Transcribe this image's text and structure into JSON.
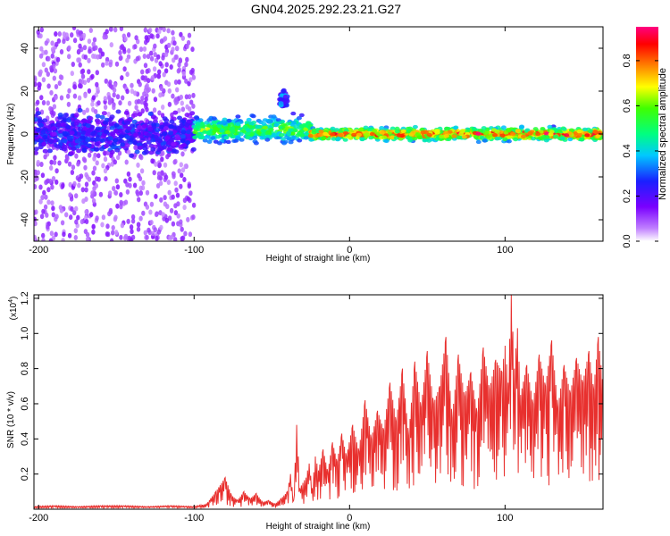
{
  "title": "GN04.2025.292.23.21.G27",
  "colors": {
    "snr_line": "#e8302e",
    "axis": "#000000",
    "background": "#ffffff"
  },
  "chart_data": [
    {
      "type": "heatmap",
      "name": "spectrogram",
      "xlabel": "Height of straight line (km)",
      "ylabel": "Frequency (Hz)",
      "xlim": [
        -203,
        163
      ],
      "ylim": [
        -50,
        50
      ],
      "xticks": [
        -200,
        -100,
        0,
        100
      ],
      "xtick_labels": [
        "-200",
        "-100",
        "0",
        "100"
      ],
      "yticks": [
        -40,
        -20,
        0,
        20,
        40
      ],
      "ytick_labels": [
        "-40",
        "-20",
        "0",
        "20",
        "40"
      ],
      "colorbar": {
        "label": "Normalized spectral amplitude",
        "range": [
          0.0,
          0.95
        ],
        "ticks": [
          0.0,
          0.2,
          0.4,
          0.6,
          0.8
        ],
        "tick_labels": [
          "0.0",
          "0.2",
          "0.4",
          "0.6",
          "0.8"
        ],
        "colormap": "rainbow (white-violet-blue-cyan-green-yellow-red-magenta)"
      },
      "features": [
        {
          "region": [
            -203,
            -100
          ],
          "description": "broad diffuse energy",
          "freq_range": [
            -50,
            50
          ],
          "amplitude": 0.1
        },
        {
          "region": [
            -203,
            -100
          ],
          "description": "dense core",
          "freq_range": [
            -12,
            12
          ],
          "amplitude": 0.2
        },
        {
          "region": [
            -100,
            -25
          ],
          "description": "transition band",
          "freq_center": 2,
          "freq_width": 8,
          "amplitude": 0.5
        },
        {
          "region": [
            -45,
            -40
          ],
          "description": "rising streak",
          "freq_range": [
            10,
            22
          ],
          "amplitude": 0.25
        },
        {
          "region": [
            -25,
            163
          ],
          "description": "tracked carrier line",
          "freq_center": 0,
          "freq_width": 4,
          "amplitude": 0.8
        }
      ]
    },
    {
      "type": "line",
      "name": "snr",
      "xlabel": "Height of straight line (km)",
      "ylabel": "SNR (10 * v/v)",
      "yscale_label": "(x10",
      "yscale_exponent": "4",
      "xlim": [
        -203,
        163
      ],
      "ylim": [
        0,
        1.22
      ],
      "xticks": [
        -200,
        -100,
        0,
        100
      ],
      "xtick_labels": [
        "-200",
        "-100",
        "0",
        "100"
      ],
      "yticks": [
        0.2,
        0.4,
        0.6,
        0.8,
        1.0,
        1.2
      ],
      "ytick_labels": [
        "0.2",
        "0.4",
        "0.6",
        "0.8",
        "1.0",
        "1.2"
      ],
      "x": [
        -203,
        -190,
        -175,
        -160,
        -145,
        -130,
        -115,
        -100,
        -92,
        -86,
        -80,
        -76,
        -72,
        -68,
        -64,
        -60,
        -56,
        -52,
        -48,
        -44,
        -40,
        -38,
        -36,
        -34,
        -32,
        -30,
        -28,
        -26,
        -24,
        -22,
        -20,
        -17,
        -14,
        -11,
        -8,
        -5,
        -2,
        2,
        6,
        10,
        14,
        18,
        22,
        26,
        30,
        34,
        38,
        42,
        46,
        50,
        54,
        58,
        62,
        66,
        70,
        74,
        78,
        82,
        86,
        90,
        94,
        98,
        100,
        102,
        104,
        106,
        108,
        110,
        114,
        118,
        122,
        126,
        130,
        134,
        138,
        142,
        146,
        150,
        154,
        157,
        160,
        163
      ],
      "y": [
        0.015,
        0.02,
        0.015,
        0.02,
        0.02,
        0.015,
        0.02,
        0.015,
        0.03,
        0.1,
        0.18,
        0.08,
        0.05,
        0.1,
        0.06,
        0.09,
        0.04,
        0.05,
        0.03,
        0.06,
        0.1,
        0.2,
        0.05,
        0.48,
        0.12,
        0.15,
        0.18,
        0.26,
        0.12,
        0.3,
        0.22,
        0.34,
        0.21,
        0.38,
        0.27,
        0.43,
        0.3,
        0.48,
        0.33,
        0.62,
        0.4,
        0.56,
        0.45,
        0.72,
        0.5,
        0.8,
        0.42,
        0.84,
        0.58,
        0.9,
        0.6,
        0.7,
        0.98,
        0.52,
        0.88,
        0.64,
        0.78,
        0.55,
        0.92,
        0.68,
        0.85,
        0.78,
        0.93,
        0.72,
        1.22,
        0.8,
        1.03,
        0.65,
        0.82,
        0.6,
        0.88,
        0.7,
        0.96,
        0.58,
        0.82,
        0.66,
        0.86,
        0.72,
        0.9,
        0.68,
        0.98,
        0.7
      ]
    }
  ]
}
